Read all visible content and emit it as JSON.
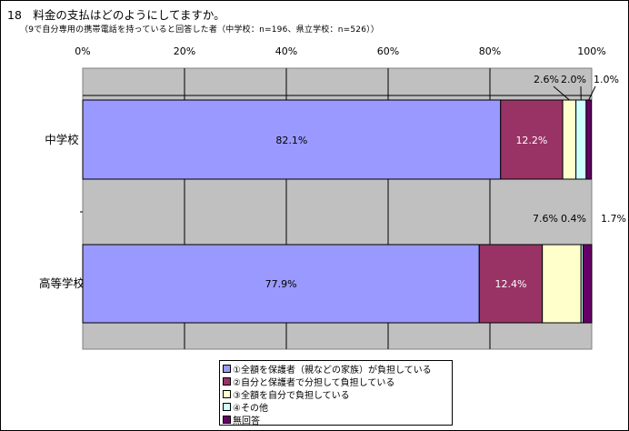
{
  "title": "18　料金の支払はどのようにしてますか。",
  "subtitle": "（9で自分専用の携帯電話を持っていると回答した者（中学校：n=196、県立学校：n=526））",
  "chart_data": {
    "type": "bar",
    "orientation": "horizontal",
    "stacked": true,
    "grid": true,
    "legend_position": "bottom",
    "xlim": [
      0,
      100
    ],
    "x_ticks": [
      "0%",
      "20%",
      "40%",
      "60%",
      "80%",
      "100%"
    ],
    "categories": [
      "中学校",
      "高等学校"
    ],
    "series": [
      {
        "name": "①全額を保護者（親などの家族）が負担している",
        "color": "#9999ff",
        "values": [
          82.1,
          77.9
        ]
      },
      {
        "name": "②自分と保護者で分担して負担している",
        "color": "#993366",
        "values": [
          12.2,
          12.4
        ]
      },
      {
        "name": "③全額を自分で負担している",
        "color": "#ffffcc",
        "values": [
          2.6,
          7.6
        ]
      },
      {
        "name": "④その他",
        "color": "#ccffff",
        "values": [
          2.0,
          0.4
        ]
      },
      {
        "name": "無回答",
        "color": "#660066",
        "values": [
          1.0,
          1.7
        ]
      }
    ],
    "data_labels": [
      [
        "82.1%",
        "12.2%",
        "2.6%",
        "2.0%",
        "1.0%"
      ],
      [
        "77.9%",
        "12.4%",
        "7.6%",
        "0.4%",
        "1.7%"
      ]
    ]
  }
}
